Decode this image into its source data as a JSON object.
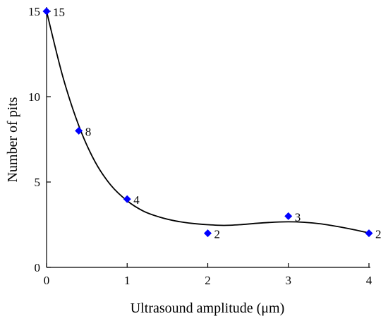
{
  "chart_data": {
    "type": "scatter",
    "xlabel": "Ultrasound amplitude (μm)",
    "ylabel": "Number of pits",
    "xlim": [
      0,
      4
    ],
    "ylim": [
      0,
      15
    ],
    "xticks": [
      0,
      1,
      2,
      3,
      4
    ],
    "yticks": [
      0,
      5,
      10,
      15
    ],
    "x_tick_labels": [
      "0",
      "1",
      "2",
      "3",
      "4"
    ],
    "y_tick_labels": [
      "0",
      "5",
      "10",
      "15"
    ],
    "grid": false,
    "legend": "none",
    "marker_color": "#0000ff",
    "curve_color": "#000000",
    "series": [
      {
        "marker": "diamond",
        "points": [
          {
            "x": 0,
            "y": 15,
            "label": "15"
          },
          {
            "x": 0.4,
            "y": 8,
            "label": "8"
          },
          {
            "x": 1,
            "y": 4,
            "label": "4"
          },
          {
            "x": 2,
            "y": 2,
            "label": "2"
          },
          {
            "x": 3,
            "y": 3,
            "label": "3"
          },
          {
            "x": 4,
            "y": 2,
            "label": "2"
          }
        ],
        "fit_curve": [
          [
            0,
            15
          ],
          [
            0.2,
            11.2
          ],
          [
            0.4,
            8.3
          ],
          [
            0.6,
            6.2
          ],
          [
            0.8,
            4.8
          ],
          [
            1.0,
            3.9
          ],
          [
            1.2,
            3.3
          ],
          [
            1.4,
            2.95
          ],
          [
            1.6,
            2.72
          ],
          [
            1.8,
            2.58
          ],
          [
            2.0,
            2.5
          ],
          [
            2.2,
            2.46
          ],
          [
            2.4,
            2.5
          ],
          [
            2.6,
            2.58
          ],
          [
            2.8,
            2.64
          ],
          [
            3.0,
            2.67
          ],
          [
            3.2,
            2.64
          ],
          [
            3.4,
            2.55
          ],
          [
            3.6,
            2.4
          ],
          [
            3.8,
            2.22
          ],
          [
            4.0,
            2.02
          ]
        ]
      }
    ]
  }
}
